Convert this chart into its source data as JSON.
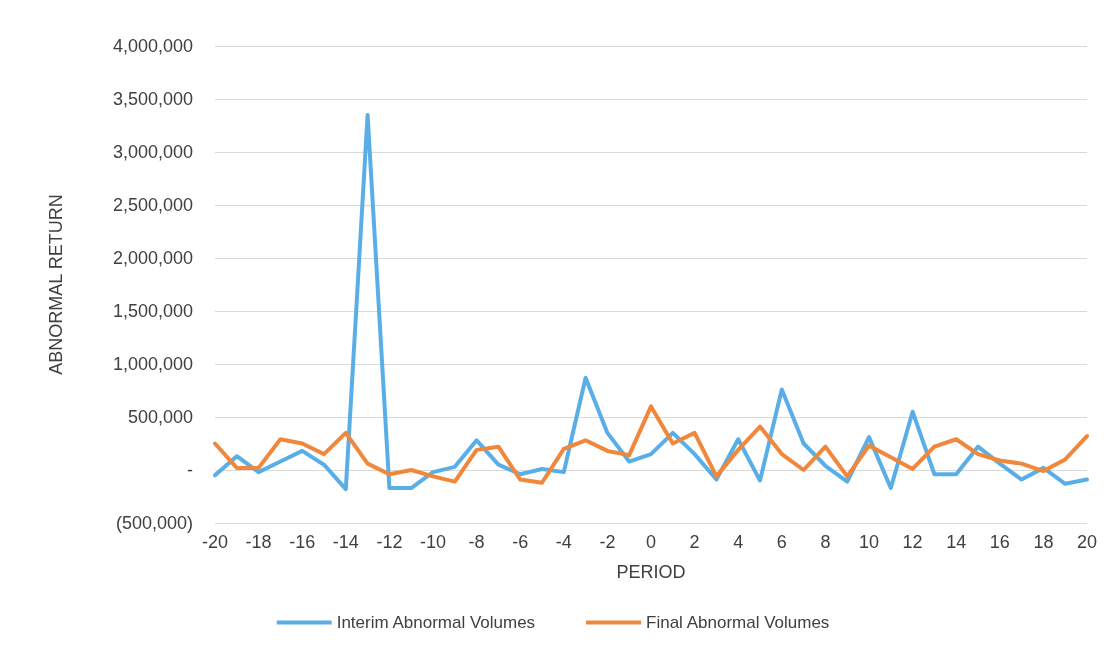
{
  "chart_data": {
    "type": "line",
    "xlabel": "PERIOD",
    "ylabel": "ABNORMAL RETURN",
    "x": [
      -20,
      -19,
      -18,
      -17,
      -16,
      -15,
      -14,
      -13,
      -12,
      -11,
      -10,
      -9,
      -8,
      -7,
      -6,
      -5,
      -4,
      -3,
      -2,
      -1,
      0,
      1,
      2,
      3,
      4,
      5,
      6,
      7,
      8,
      9,
      10,
      11,
      12,
      13,
      14,
      15,
      16,
      17,
      18,
      19,
      20
    ],
    "series": [
      {
        "name": "Interim Abnormal Volumes",
        "color": "#5aaee8",
        "values": [
          -50000,
          130000,
          -20000,
          80000,
          180000,
          50000,
          -180000,
          3350000,
          -170000,
          -170000,
          -20000,
          30000,
          280000,
          50000,
          -40000,
          10000,
          -20000,
          870000,
          350000,
          80000,
          150000,
          350000,
          150000,
          -90000,
          290000,
          -100000,
          760000,
          250000,
          40000,
          -110000,
          310000,
          -170000,
          550000,
          -40000,
          -40000,
          220000,
          60000,
          -90000,
          20000,
          -130000,
          -90000
        ]
      },
      {
        "name": "Final Abnormal Volumes",
        "color": "#f0873a",
        "values": [
          250000,
          20000,
          20000,
          290000,
          250000,
          150000,
          350000,
          60000,
          -40000,
          0,
          -60000,
          -110000,
          190000,
          220000,
          -90000,
          -120000,
          200000,
          280000,
          180000,
          140000,
          600000,
          250000,
          350000,
          -60000,
          190000,
          410000,
          150000,
          0,
          220000,
          -60000,
          230000,
          120000,
          10000,
          220000,
          290000,
          150000,
          90000,
          60000,
          -10000,
          100000,
          320000
        ]
      }
    ],
    "xlim": [
      -20,
      20
    ],
    "xticks": [
      -20,
      -18,
      -16,
      -14,
      -12,
      -10,
      -8,
      -6,
      -4,
      -2,
      0,
      2,
      4,
      6,
      8,
      10,
      12,
      14,
      16,
      18,
      20
    ],
    "ylim": [
      -500000,
      4000000
    ],
    "yticks": [
      {
        "value": -500000,
        "label": "(500,000)"
      },
      {
        "value": 0,
        "label": "-"
      },
      {
        "value": 500000,
        "label": "500,000"
      },
      {
        "value": 1000000,
        "label": "1,000,000"
      },
      {
        "value": 1500000,
        "label": "1,500,000"
      },
      {
        "value": 2000000,
        "label": "2,000,000"
      },
      {
        "value": 2500000,
        "label": "2,500,000"
      },
      {
        "value": 3000000,
        "label": "3,000,000"
      },
      {
        "value": 3500000,
        "label": "3,500,000"
      },
      {
        "value": 4000000,
        "label": "4,000,000"
      }
    ],
    "grid": "y",
    "legend": "bottom",
    "marker": "none",
    "line_style": "solid"
  }
}
